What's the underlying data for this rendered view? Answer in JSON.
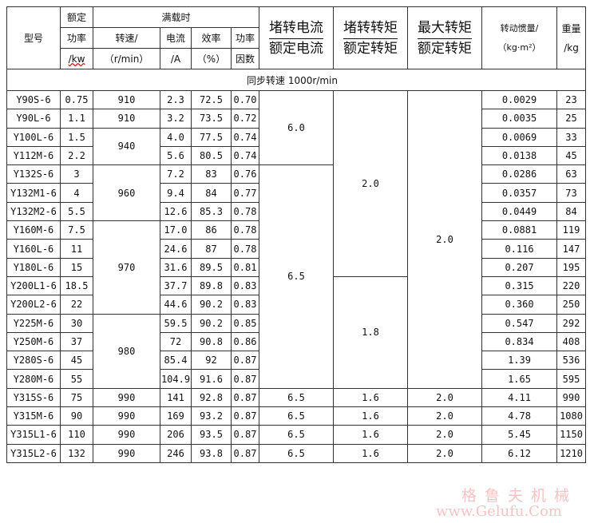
{
  "header": {
    "model": "型号",
    "rated_power": [
      "额定",
      "功率",
      "/kw"
    ],
    "full_load": "满载时",
    "speed": [
      "转速/",
      "（r/min）"
    ],
    "current": [
      "电流",
      "/A"
    ],
    "efficiency": [
      "效率",
      "（%）"
    ],
    "power_factor": [
      "功率",
      "因数"
    ],
    "locked_current_ratio": [
      "堵转电流",
      "额定电流"
    ],
    "locked_torque_ratio": [
      "堵转转矩",
      "额定转矩"
    ],
    "max_torque_ratio": [
      "最大转矩",
      "额定转矩"
    ],
    "inertia": [
      "转动惯量/",
      "（kg·m²）"
    ],
    "weight": [
      "重量",
      "/kg"
    ]
  },
  "sync_speed": "同步转速 1000r/min",
  "rows": [
    {
      "model": "Y90S-6",
      "power": "0.75",
      "current": "2.3",
      "eff": "72.5",
      "pf": "0.70",
      "inertia": "0.0029",
      "weight": "23"
    },
    {
      "model": "Y90L-6",
      "power": "1.1",
      "current": "3.2",
      "eff": "73.5",
      "pf": "0.72",
      "inertia": "0.0035",
      "weight": "25"
    },
    {
      "model": "Y100L-6",
      "power": "1.5",
      "current": "4.0",
      "eff": "77.5",
      "pf": "0.74",
      "inertia": "0.0069",
      "weight": "33"
    },
    {
      "model": "Y112M-6",
      "power": "2.2",
      "current": "5.6",
      "eff": "80.5",
      "pf": "0.74",
      "inertia": "0.0138",
      "weight": "45"
    },
    {
      "model": "Y132S-6",
      "power": "3",
      "current": "7.2",
      "eff": "83",
      "pf": "0.76",
      "inertia": "0.0286",
      "weight": "63"
    },
    {
      "model": "Y132M1-6",
      "power": "4",
      "current": "9.4",
      "eff": "84",
      "pf": "0.77",
      "inertia": "0.0357",
      "weight": "73"
    },
    {
      "model": "Y132M2-6",
      "power": "5.5",
      "current": "12.6",
      "eff": "85.3",
      "pf": "0.78",
      "inertia": "0.0449",
      "weight": "84"
    },
    {
      "model": "Y160M-6",
      "power": "7.5",
      "current": "17.0",
      "eff": "86",
      "pf": "0.78",
      "inertia": "0.0881",
      "weight": "119"
    },
    {
      "model": "Y160L-6",
      "power": "11",
      "current": "24.6",
      "eff": "87",
      "pf": "0.78",
      "inertia": "0.116",
      "weight": "147"
    },
    {
      "model": "Y180L-6",
      "power": "15",
      "current": "31.6",
      "eff": "89.5",
      "pf": "0.81",
      "inertia": "0.207",
      "weight": "195"
    },
    {
      "model": "Y200L1-6",
      "power": "18.5",
      "current": "37.7",
      "eff": "89.8",
      "pf": "0.83",
      "inertia": "0.315",
      "weight": "220"
    },
    {
      "model": "Y200L2-6",
      "power": "22",
      "current": "44.6",
      "eff": "90.2",
      "pf": "0.83",
      "inertia": "0.360",
      "weight": "250"
    },
    {
      "model": "Y225M-6",
      "power": "30",
      "current": "59.5",
      "eff": "90.2",
      "pf": "0.85",
      "inertia": "0.547",
      "weight": "292"
    },
    {
      "model": "Y250M-6",
      "power": "37",
      "current": "72",
      "eff": "90.8",
      "pf": "0.86",
      "inertia": "0.834",
      "weight": "408"
    },
    {
      "model": "Y280S-6",
      "power": "45",
      "current": "85.4",
      "eff": "92",
      "pf": "0.87",
      "inertia": "1.39",
      "weight": "536"
    },
    {
      "model": "Y280M-6",
      "power": "55",
      "current": "104.9",
      "eff": "91.6",
      "pf": "0.87",
      "inertia": "1.65",
      "weight": "595"
    },
    {
      "model": "Y315S-6",
      "power": "75",
      "current": "141",
      "eff": "92.8",
      "pf": "0.87",
      "inertia": "4.11",
      "weight": "990"
    },
    {
      "model": "Y315M-6",
      "power": "90",
      "current": "169",
      "eff": "93.2",
      "pf": "0.87",
      "inertia": "4.78",
      "weight": "1080"
    },
    {
      "model": "Y315L1-6",
      "power": "110",
      "current": "206",
      "eff": "93.5",
      "pf": "0.87",
      "inertia": "5.45",
      "weight": "1150"
    },
    {
      "model": "Y315L2-6",
      "power": "132",
      "current": "246",
      "eff": "93.8",
      "pf": "0.87",
      "inertia": "6.12",
      "weight": "1210"
    }
  ],
  "speed_groups": [
    {
      "value": "910",
      "span": 1
    },
    {
      "value": "910",
      "span": 1
    },
    {
      "value": "940",
      "span": 2
    },
    {
      "value": "960",
      "span": 3
    },
    {
      "value": "970",
      "span": 5
    },
    {
      "value": "980",
      "span": 4
    },
    {
      "value": "990",
      "span": 1
    },
    {
      "value": "990",
      "span": 1
    },
    {
      "value": "990",
      "span": 1
    },
    {
      "value": "990",
      "span": 1
    }
  ],
  "locked_current_groups": [
    {
      "value": "6.0",
      "span": 4
    },
    {
      "value": "6.5",
      "span": 12
    },
    {
      "value": "6.5",
      "span": 1
    },
    {
      "value": "6.5",
      "span": 1
    },
    {
      "value": "6.5",
      "span": 1
    },
    {
      "value": "6.5",
      "span": 1
    }
  ],
  "locked_torque_groups": [
    {
      "value": "2.0",
      "span": 10
    },
    {
      "value": "1.8",
      "span": 6
    },
    {
      "value": "1.6",
      "span": 1
    },
    {
      "value": "1.6",
      "span": 1
    },
    {
      "value": "1.6",
      "span": 1
    },
    {
      "value": "1.6",
      "span": 1
    }
  ],
  "max_torque_groups": [
    {
      "value": "2.0",
      "span": 16
    },
    {
      "value": "2.0",
      "span": 1
    },
    {
      "value": "2.0",
      "span": 1
    },
    {
      "value": "2.0",
      "span": 1
    },
    {
      "value": "2.0",
      "span": 1
    }
  ],
  "watermark": {
    "line1": "格鲁夫机械",
    "line2": "www.Gelufu.Com"
  }
}
